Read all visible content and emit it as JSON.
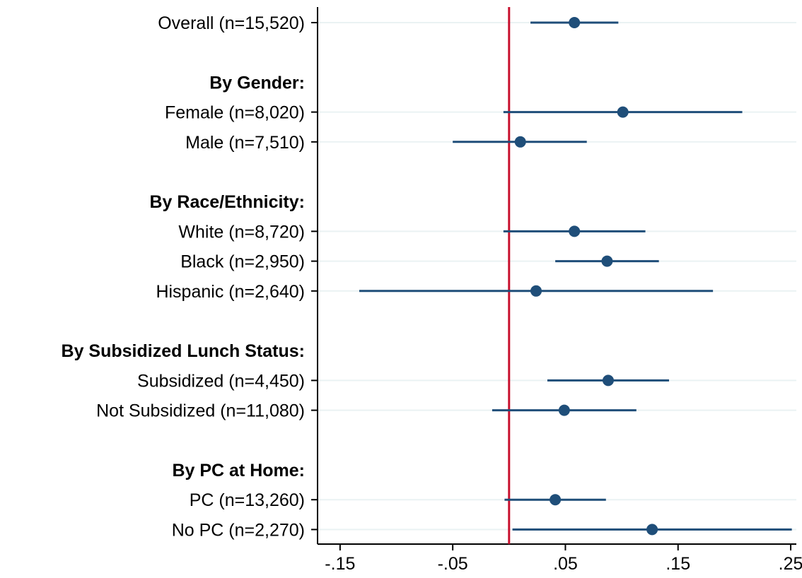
{
  "chart_data": {
    "type": "scatter",
    "title": "",
    "xlabel": "",
    "ylabel": "",
    "xlim": [
      -0.17,
      0.255
    ],
    "x_ticks": [
      -0.15,
      -0.05,
      0.05,
      0.15,
      0.25
    ],
    "x_tick_labels": [
      "-.15",
      "-.05",
      ".05",
      ".15",
      ".25"
    ],
    "reference_x": 0.0,
    "grid": true,
    "colors": {
      "marker": "#1f4e79",
      "ci": "#1f4e79",
      "reference_line": "#c8102e",
      "grid": "#eaf2f3",
      "axis": "#000000"
    },
    "rows": [
      {
        "kind": "estimate",
        "label": "Overall (n=15,520)",
        "estimate": 0.058,
        "ci_low": 0.019,
        "ci_high": 0.097
      },
      {
        "kind": "spacer"
      },
      {
        "kind": "header",
        "label": "By Gender:"
      },
      {
        "kind": "estimate",
        "label": "Female (n=8,020)",
        "estimate": 0.101,
        "ci_low": -0.005,
        "ci_high": 0.207
      },
      {
        "kind": "estimate",
        "label": "Male (n=7,510)",
        "estimate": 0.01,
        "ci_low": -0.05,
        "ci_high": 0.069
      },
      {
        "kind": "spacer"
      },
      {
        "kind": "header",
        "label": "By Race/Ethnicity:"
      },
      {
        "kind": "estimate",
        "label": "White (n=8,720)",
        "estimate": 0.058,
        "ci_low": -0.005,
        "ci_high": 0.121
      },
      {
        "kind": "estimate",
        "label": "Black (n=2,950)",
        "estimate": 0.087,
        "ci_low": 0.041,
        "ci_high": 0.133
      },
      {
        "kind": "estimate",
        "label": "Hispanic (n=2,640)",
        "estimate": 0.024,
        "ci_low": -0.133,
        "ci_high": 0.181
      },
      {
        "kind": "spacer"
      },
      {
        "kind": "header",
        "label": "By Subsidized Lunch Status:"
      },
      {
        "kind": "estimate",
        "label": "Subsidized (n=4,450)",
        "estimate": 0.088,
        "ci_low": 0.034,
        "ci_high": 0.142
      },
      {
        "kind": "estimate",
        "label": "Not Subsidized (n=11,080)",
        "estimate": 0.049,
        "ci_low": -0.015,
        "ci_high": 0.113
      },
      {
        "kind": "spacer"
      },
      {
        "kind": "header",
        "label": "By PC at Home:"
      },
      {
        "kind": "estimate",
        "label": "PC (n=13,260)",
        "estimate": 0.041,
        "ci_low": -0.004,
        "ci_high": 0.086
      },
      {
        "kind": "estimate",
        "label": "No PC (n=2,270)",
        "estimate": 0.127,
        "ci_low": 0.003,
        "ci_high": 0.251
      }
    ]
  }
}
